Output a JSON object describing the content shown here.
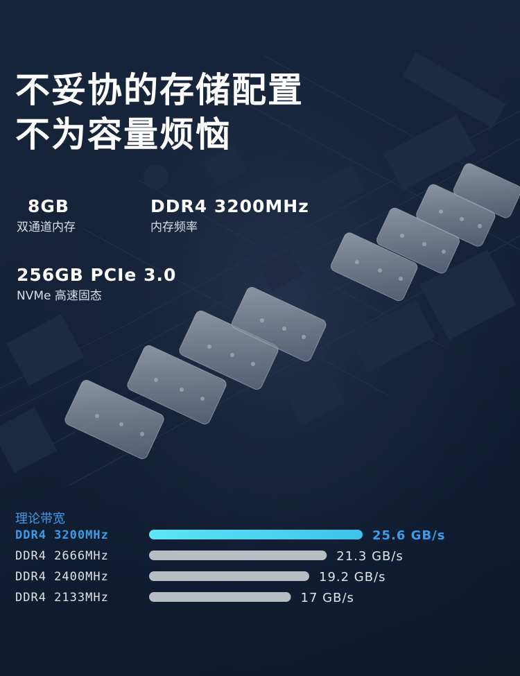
{
  "headline": {
    "line1": "不妥协的存储配置",
    "line2": "不为容量烦恼"
  },
  "specs": {
    "memory_size": "8GB",
    "memory_type": "双通道内存",
    "memory_speed": "DDR4 3200MHz",
    "memory_speed_label": "内存频率",
    "storage": "256GB PCIe 3.0",
    "storage_type": "NVMe 高速固态"
  },
  "colors": {
    "highlight": "#3f9ae8",
    "bar_highlight": "#4fd6f0",
    "bar_normal": "#b8bcc3",
    "text_normal": "#e0e3e8"
  },
  "chart_data": {
    "type": "bar",
    "orientation": "horizontal",
    "title": "理论带宽",
    "categories": [
      "DDR4 3200MHz",
      "DDR4 2666MHz",
      "DDR4 2400MHz",
      "DDR4 2133MHz"
    ],
    "values": [
      25.6,
      21.3,
      19.2,
      17
    ],
    "value_labels": [
      "25.6 GB/s",
      "21.3 GB/s",
      "19.2 GB/s",
      "17 GB/s"
    ],
    "highlight_index": 0,
    "xlim": [
      0,
      25.6
    ]
  }
}
